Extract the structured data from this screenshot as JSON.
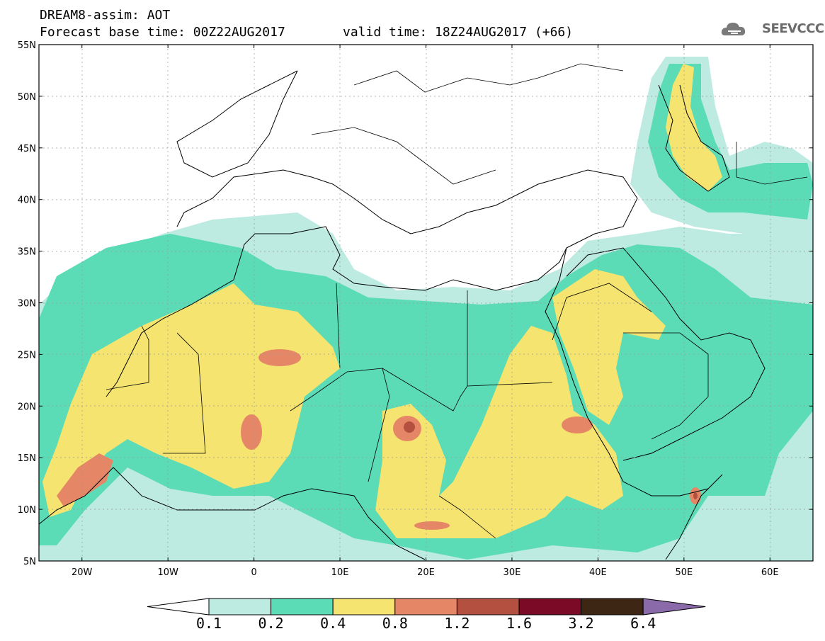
{
  "header": {
    "title_line1": "DREAM8-assim: AOT",
    "base_time": "Forecast base time: 00Z22AUG2017",
    "valid_time": "valid time: 18Z24AUG2017 (+66)",
    "logo_text": "SEEVCCC"
  },
  "map": {
    "lon_range": [
      -25,
      65
    ],
    "lat_range": [
      5,
      55
    ],
    "lon_ticks": [
      "20W",
      "10W",
      "0",
      "10E",
      "20E",
      "30E",
      "40E",
      "50E",
      "60E"
    ],
    "lat_ticks": [
      "55N",
      "50N",
      "45N",
      "40N",
      "35N",
      "30N",
      "25N",
      "20N",
      "15N",
      "10N",
      "5N"
    ]
  },
  "colorbar": {
    "levels": [
      "0.1",
      "0.2",
      "0.4",
      "0.8",
      "1.2",
      "1.6",
      "3.2",
      "6.4"
    ],
    "colors": [
      "#ffffff",
      "#bdebe2",
      "#5bdcb6",
      "#f5e46f",
      "#e58766",
      "#b4503f",
      "#7a0a26",
      "#3d2614",
      "#8a6aa8"
    ]
  }
}
